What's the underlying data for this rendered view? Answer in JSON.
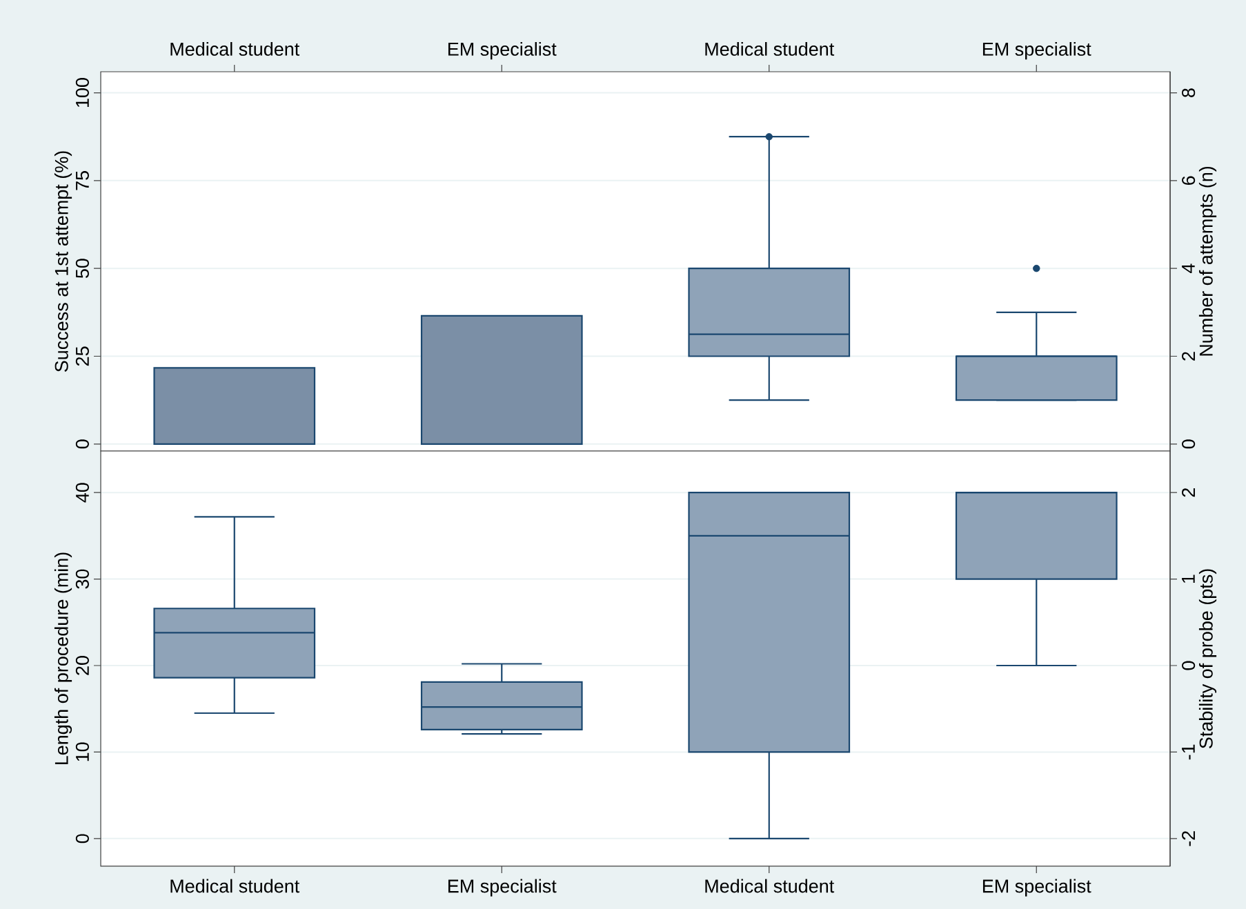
{
  "chart_data": [
    {
      "type": "bar",
      "categories": [
        "Medical student",
        "EM specialist",
        "Medical student",
        "EM specialist"
      ],
      "ylabel": "Success at 1st attempt (%)",
      "y2label": "Number of attempts (n)",
      "ylim": [
        -2,
        106
      ],
      "yticks": [
        0,
        25,
        50,
        75,
        100
      ],
      "y2lim": [
        -0.16,
        8.48
      ],
      "y2ticks": [
        0,
        2,
        4,
        6,
        8
      ],
      "grid": "y",
      "series": [
        {
          "color": "#7b8fa6",
          "values": [
            21.7,
            36.5,
            null,
            null
          ]
        },
        {
          "type": "box",
          "axis": "y2",
          "color": "#8fa3b8",
          "boxes": [
            null,
            null,
            {
              "low": 1,
              "q1": 2,
              "median": 2.5,
              "q3": 4,
              "high": 7,
              "outliers": [
                7
              ]
            },
            {
              "low": 1,
              "q1": 1,
              "median": 2,
              "q3": 2,
              "high": 3,
              "outliers": [
                4
              ]
            }
          ]
        }
      ]
    },
    {
      "type": "box",
      "categories": [
        "Medical student",
        "EM specialist",
        "Medical student",
        "EM specialist"
      ],
      "ylabel": "Length of procedure (min)",
      "y2label": "Stability of probe (pts)",
      "ylim": [
        -3.2,
        44.8
      ],
      "yticks": [
        0,
        10,
        20,
        30,
        40
      ],
      "y2lim": [
        -2.32,
        2.48
      ],
      "y2ticks": [
        -2,
        -1,
        0,
        1,
        2
      ],
      "grid": "y",
      "series": [
        {
          "color": "#8fa3b8",
          "boxes": [
            {
              "low": 14.5,
              "q1": 18.6,
              "median": 23.8,
              "q3": 26.6,
              "high": 37.2
            },
            {
              "low": 12.1,
              "q1": 12.6,
              "median": 15.2,
              "q3": 18.1,
              "high": 20.2
            },
            null,
            null
          ]
        },
        {
          "axis": "y2",
          "color": "#8fa3b8",
          "boxes": [
            null,
            null,
            {
              "low": -2,
              "q1": -1,
              "median": 1.5,
              "q3": 2,
              "high": 2
            },
            {
              "low": 0,
              "q1": 1,
              "median": 2,
              "q3": 2,
              "high": 2
            }
          ]
        }
      ]
    }
  ]
}
